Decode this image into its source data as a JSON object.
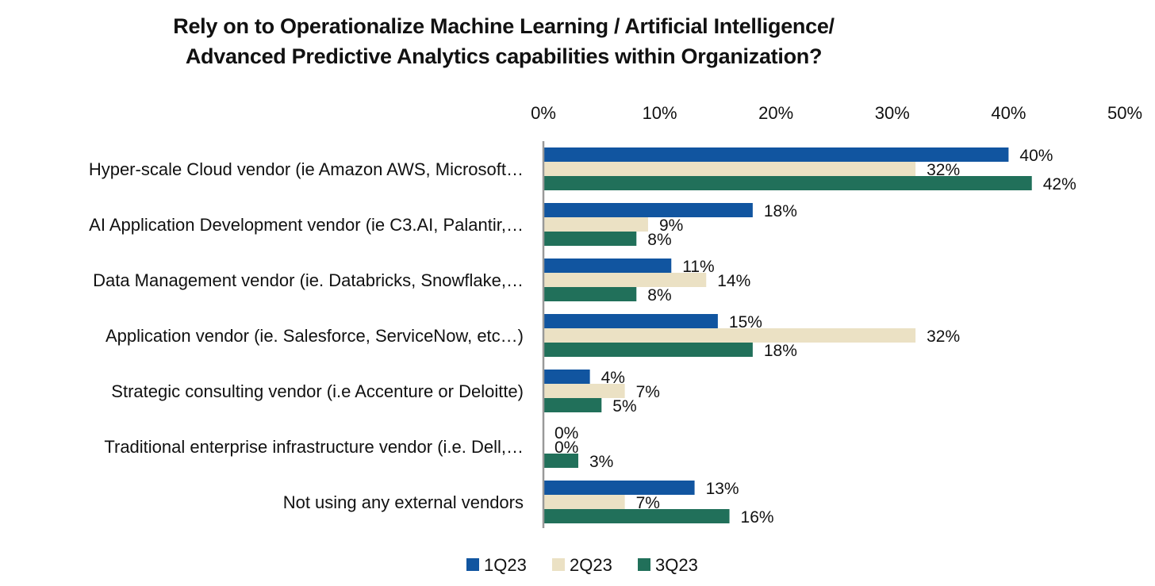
{
  "chart_data": {
    "type": "bar",
    "orientation": "horizontal",
    "title_lines": [
      "Rely on to Operationalize Machine Learning / Artificial Intelligence/",
      "Advanced Predictive Analytics capabilities within Organization?"
    ],
    "categories": [
      "Hyper-scale Cloud vendor (ie Amazon AWS, Microsoft…",
      "AI Application Development vendor (ie C3.AI, Palantir,…",
      "Data Management vendor (ie. Databricks, Snowflake,…",
      "Application vendor (ie. Salesforce, ServiceNow, etc…)",
      "Strategic consulting vendor (i.e Accenture or Deloitte)",
      "Traditional enterprise infrastructure vendor (i.e. Dell,…",
      "Not using any external vendors"
    ],
    "series": [
      {
        "name": "1Q23",
        "color": "#1155a0",
        "values": [
          40,
          18,
          11,
          15,
          4,
          0,
          13
        ],
        "labels": [
          "40%",
          "18%",
          "11%",
          "15%",
          "4%",
          "0%",
          "13%"
        ]
      },
      {
        "name": "2Q23",
        "color": "#ebe1c4",
        "values": [
          32,
          9,
          14,
          32,
          7,
          0,
          7
        ],
        "labels": [
          "32%",
          "9%",
          "14%",
          "32%",
          "7%",
          "0%",
          "7%"
        ]
      },
      {
        "name": "3Q23",
        "color": "#21705a",
        "values": [
          42,
          8,
          8,
          18,
          5,
          3,
          16
        ],
        "labels": [
          "42%",
          "8%",
          "8%",
          "18%",
          "5%",
          "3%",
          "16%"
        ]
      }
    ],
    "xlim": [
      0,
      50
    ],
    "ticks": [
      0,
      10,
      20,
      30,
      40,
      50
    ],
    "tick_labels": [
      "0%",
      "10%",
      "20%",
      "30%",
      "40%",
      "50%"
    ],
    "axis_position": "top",
    "grid": false,
    "legend_position": "bottom"
  }
}
